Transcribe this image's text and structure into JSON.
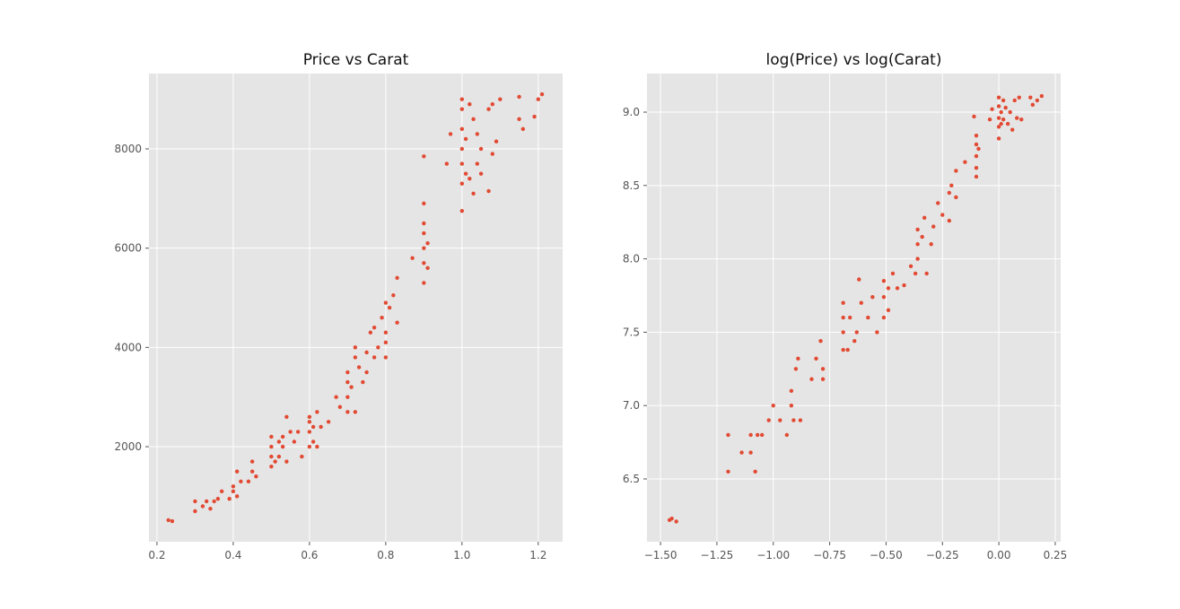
{
  "chart_data": [
    {
      "type": "scatter",
      "title": "Price vs Carat",
      "color": "#e24a33",
      "grid": true,
      "xlim": [
        0.179,
        1.264
      ],
      "ylim": [
        85,
        9518
      ],
      "xticks": [
        0.2,
        0.4,
        0.6,
        0.8,
        {
          "value": 1,
          "label": "1.0"
        },
        1.2
      ],
      "yticks": [
        2000,
        4000,
        6000,
        8000
      ],
      "x": [
        0.23,
        0.24,
        0.3,
        0.3,
        0.32,
        0.33,
        0.34,
        0.35,
        0.36,
        0.37,
        0.39,
        0.4,
        0.4,
        0.41,
        0.41,
        0.42,
        0.44,
        0.45,
        0.45,
        0.46,
        0.5,
        0.5,
        0.5,
        0.5,
        0.51,
        0.52,
        0.52,
        0.53,
        0.53,
        0.54,
        0.54,
        0.55,
        0.56,
        0.57,
        0.58,
        0.6,
        0.6,
        0.6,
        0.6,
        0.61,
        0.61,
        0.62,
        0.62,
        0.63,
        0.65,
        0.67,
        0.68,
        0.7,
        0.7,
        0.7,
        0.7,
        0.71,
        0.72,
        0.72,
        0.72,
        0.73,
        0.74,
        0.75,
        0.75,
        0.76,
        0.77,
        0.77,
        0.78,
        0.79,
        0.8,
        0.8,
        0.8,
        0.8,
        0.81,
        0.82,
        0.83,
        0.83,
        0.87,
        0.9,
        0.9,
        0.9,
        0.9,
        0.9,
        0.9,
        0.9,
        0.91,
        0.91,
        0.96,
        0.97,
        1.0,
        1.0,
        1.0,
        1.0,
        1.0,
        1.0,
        1.0,
        1.01,
        1.01,
        1.02,
        1.02,
        1.03,
        1.03,
        1.04,
        1.04,
        1.05,
        1.05,
        1.07,
        1.07,
        1.08,
        1.08,
        1.09,
        1.1,
        1.15,
        1.15,
        1.16,
        1.19,
        1.2,
        1.21
      ],
      "y": [
        520,
        500,
        700,
        900,
        800,
        900,
        750,
        900,
        950,
        1100,
        950,
        1100,
        1200,
        1500,
        1000,
        1300,
        1300,
        1500,
        1700,
        1400,
        1600,
        1800,
        2000,
        2200,
        1700,
        2100,
        1800,
        2000,
        2200,
        2600,
        1700,
        2300,
        2100,
        2300,
        1800,
        2000,
        2300,
        2500,
        2600,
        2100,
        2400,
        2700,
        2000,
        2400,
        2500,
        3000,
        2800,
        2700,
        3000,
        3300,
        3500,
        3200,
        3800,
        4000,
        2700,
        3600,
        3300,
        3900,
        3500,
        4300,
        4400,
        3800,
        4000,
        4600,
        4900,
        4100,
        3800,
        4300,
        4800,
        5050,
        5400,
        4500,
        5800,
        5300,
        5700,
        6000,
        6300,
        6500,
        6900,
        7850,
        5600,
        6100,
        7700,
        8300,
        6750,
        7300,
        7700,
        8000,
        8400,
        8800,
        9000,
        7500,
        8200,
        7400,
        8900,
        7100,
        8600,
        7700,
        8300,
        8000,
        7500,
        7150,
        8800,
        7900,
        8900,
        8150,
        9000,
        8600,
        9050,
        8400,
        8650,
        9000,
        9100
      ]
    },
    {
      "type": "scatter",
      "title": "log(Price) vs log(Carat)",
      "color": "#e24a33",
      "grid": true,
      "xlim": [
        -1.56,
        0.274
      ],
      "ylim": [
        6.072,
        9.263
      ],
      "xticks": [
        {
          "value": -1.5,
          "label": "−1.50"
        },
        {
          "value": -1.25,
          "label": "−1.25"
        },
        {
          "value": -1,
          "label": "−1.00"
        },
        {
          "value": -0.75,
          "label": "−0.75"
        },
        {
          "value": -0.5,
          "label": "−0.50"
        },
        {
          "value": -0.25,
          "label": "−0.25"
        },
        {
          "value": 0,
          "label": "0.00"
        },
        0.25
      ],
      "yticks": [
        6.5,
        {
          "value": 7,
          "label": "7.0"
        },
        7.5,
        {
          "value": 8,
          "label": "8.0"
        },
        8.5,
        {
          "value": 9,
          "label": "9.0"
        }
      ],
      "x": [
        -1.46,
        -1.45,
        -1.43,
        -1.2,
        -1.2,
        -1.14,
        -1.1,
        -1.1,
        -1.08,
        -1.07,
        -1.05,
        -1.02,
        -1.0,
        -0.97,
        -0.94,
        -0.92,
        -0.92,
        -0.91,
        -0.9,
        -0.89,
        -0.88,
        -0.83,
        -0.81,
        -0.79,
        -0.78,
        -0.78,
        -0.69,
        -0.69,
        -0.69,
        -0.69,
        -0.67,
        -0.66,
        -0.64,
        -0.63,
        -0.62,
        -0.61,
        -0.58,
        -0.56,
        -0.54,
        -0.51,
        -0.51,
        -0.51,
        -0.49,
        -0.49,
        -0.47,
        -0.45,
        -0.42,
        -0.39,
        -0.37,
        -0.36,
        -0.36,
        -0.36,
        -0.34,
        -0.33,
        -0.32,
        -0.3,
        -0.29,
        -0.27,
        -0.25,
        -0.22,
        -0.22,
        -0.21,
        -0.19,
        -0.19,
        -0.15,
        -0.11,
        -0.1,
        -0.1,
        -0.1,
        -0.1,
        -0.1,
        -0.09,
        -0.04,
        -0.03,
        0.0,
        0.0,
        0.0,
        0.0,
        0.0,
        0.01,
        0.01,
        0.02,
        0.02,
        0.03,
        0.04,
        0.05,
        0.06,
        0.07,
        0.08,
        0.09,
        0.1,
        0.14,
        0.15,
        0.17,
        0.19
      ],
      "y": [
        6.22,
        6.23,
        6.21,
        6.55,
        6.8,
        6.68,
        6.68,
        6.8,
        6.55,
        6.8,
        6.8,
        6.9,
        7.0,
        6.9,
        6.8,
        7.0,
        7.1,
        6.9,
        7.25,
        7.32,
        6.9,
        7.18,
        7.32,
        7.44,
        7.25,
        7.18,
        7.38,
        7.5,
        7.6,
        7.7,
        7.38,
        7.6,
        7.44,
        7.5,
        7.86,
        7.7,
        7.6,
        7.74,
        7.5,
        7.6,
        7.74,
        7.85,
        7.65,
        7.8,
        7.9,
        7.8,
        7.82,
        7.95,
        7.9,
        8.0,
        8.1,
        8.2,
        8.15,
        8.28,
        7.9,
        8.1,
        8.22,
        8.38,
        8.3,
        8.45,
        8.26,
        8.5,
        8.42,
        8.6,
        8.66,
        8.97,
        8.56,
        8.62,
        8.7,
        8.78,
        8.84,
        8.75,
        8.95,
        9.02,
        8.82,
        8.9,
        8.96,
        9.04,
        9.1,
        8.92,
        9.0,
        9.08,
        8.95,
        9.03,
        8.92,
        9.0,
        8.88,
        9.08,
        8.96,
        9.1,
        8.95,
        9.1,
        9.05,
        9.08,
        9.11
      ]
    }
  ]
}
